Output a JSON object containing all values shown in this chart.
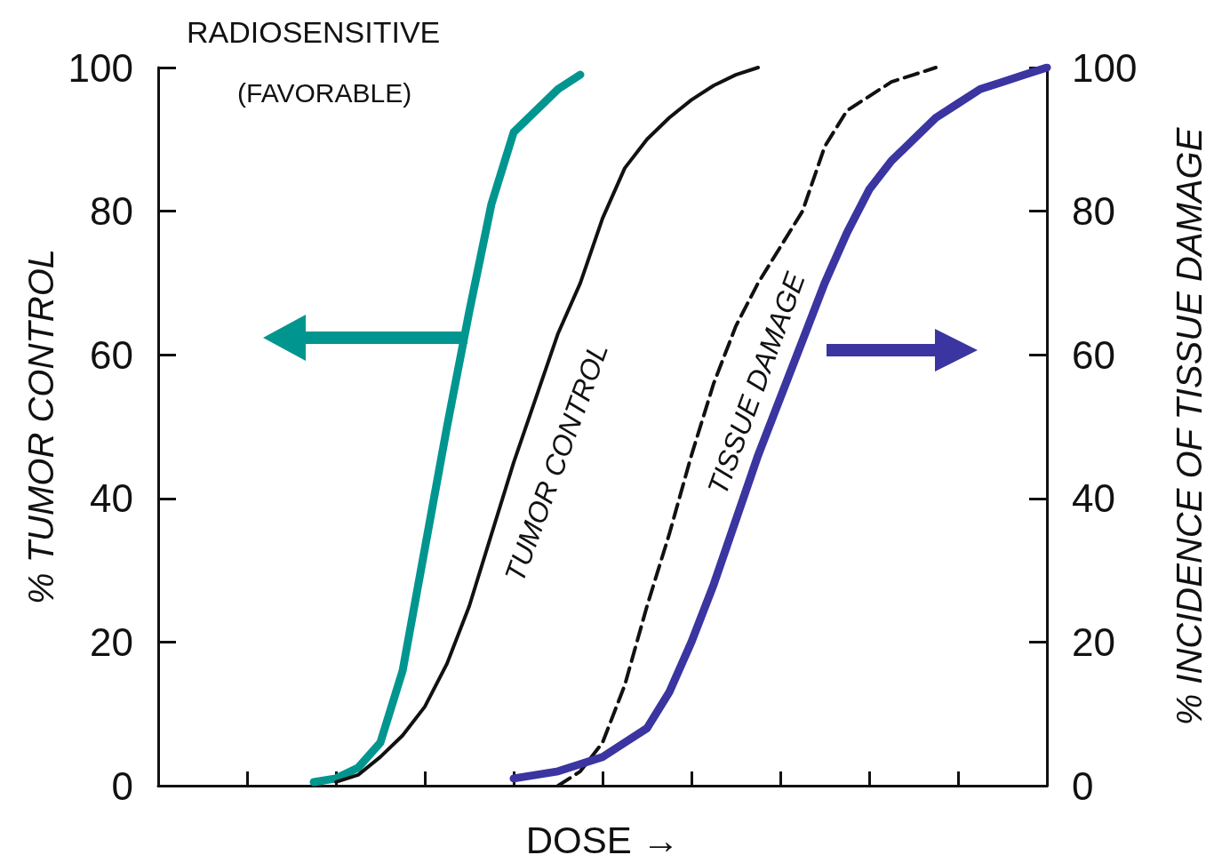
{
  "chart_data": {
    "type": "line",
    "title": "RADIOSENSITIVE",
    "subtitle": "(FAVORABLE)",
    "xlabel": "DOSE →",
    "ylabel": "% TUMOR CONTROL",
    "y2label": "% INCIDENCE OF TISSUE DAMAGE",
    "categories": [
      null,
      null,
      null,
      null,
      null,
      null,
      null,
      null,
      null,
      null,
      null,
      null,
      null,
      null,
      null,
      null,
      null,
      null,
      null,
      null,
      null,
      null,
      null,
      null,
      null,
      null,
      null,
      null,
      null,
      null,
      null,
      null,
      null,
      null,
      null,
      null,
      null,
      null,
      null,
      null,
      null
    ],
    "series": [
      {
        "color": "#00968f",
        "values": [
          null,
          null,
          null,
          null,
          null,
          null,
          null,
          0.5,
          1,
          2.5,
          6,
          16,
          33,
          50,
          66,
          81,
          91,
          94,
          97,
          99,
          null,
          null,
          null,
          null,
          null,
          null,
          null,
          null,
          null,
          null,
          null,
          null,
          null,
          null,
          null,
          null,
          null,
          null,
          null,
          null,
          null
        ]
      },
      {
        "name": "TUMOR CONTROL",
        "color": "#111111",
        "values": [
          null,
          null,
          null,
          null,
          null,
          null,
          null,
          null,
          0.5,
          1.5,
          4,
          7,
          11,
          17,
          25,
          35,
          45,
          54,
          63,
          70,
          79,
          86,
          90,
          93,
          95.5,
          97.5,
          99,
          100,
          null,
          null,
          null,
          null,
          null,
          null,
          null,
          null,
          null,
          null,
          null,
          null,
          null
        ]
      },
      {
        "name": "TISSUE DAMAGE",
        "color": "#111111",
        "line_style": "dashed",
        "values": [
          null,
          null,
          null,
          null,
          null,
          null,
          null,
          null,
          null,
          null,
          null,
          null,
          null,
          null,
          null,
          null,
          null,
          null,
          0,
          2,
          6,
          14,
          25,
          35,
          46,
          56,
          64,
          70,
          75,
          80,
          89,
          94,
          96,
          98,
          99,
          100,
          null,
          null,
          null,
          null,
          null
        ]
      },
      {
        "color": "#3a35a0",
        "axis": "y2",
        "values": [
          null,
          null,
          null,
          null,
          null,
          null,
          null,
          null,
          null,
          null,
          null,
          null,
          null,
          null,
          null,
          null,
          1,
          1.5,
          2,
          3,
          4,
          6,
          8,
          13,
          20,
          28,
          37,
          46,
          54,
          62,
          70,
          77,
          83,
          87,
          90,
          93,
          95,
          97,
          98,
          99,
          100
        ]
      }
    ],
    "ylim": [
      0,
      100
    ],
    "yticks": [
      0,
      20,
      40,
      60,
      80,
      100
    ],
    "y2lim": [
      0,
      100
    ],
    "y2ticks": [
      0,
      20,
      40,
      60,
      80,
      100
    ],
    "tick_labels": "y",
    "line_style": "solid",
    "marker": "none"
  }
}
